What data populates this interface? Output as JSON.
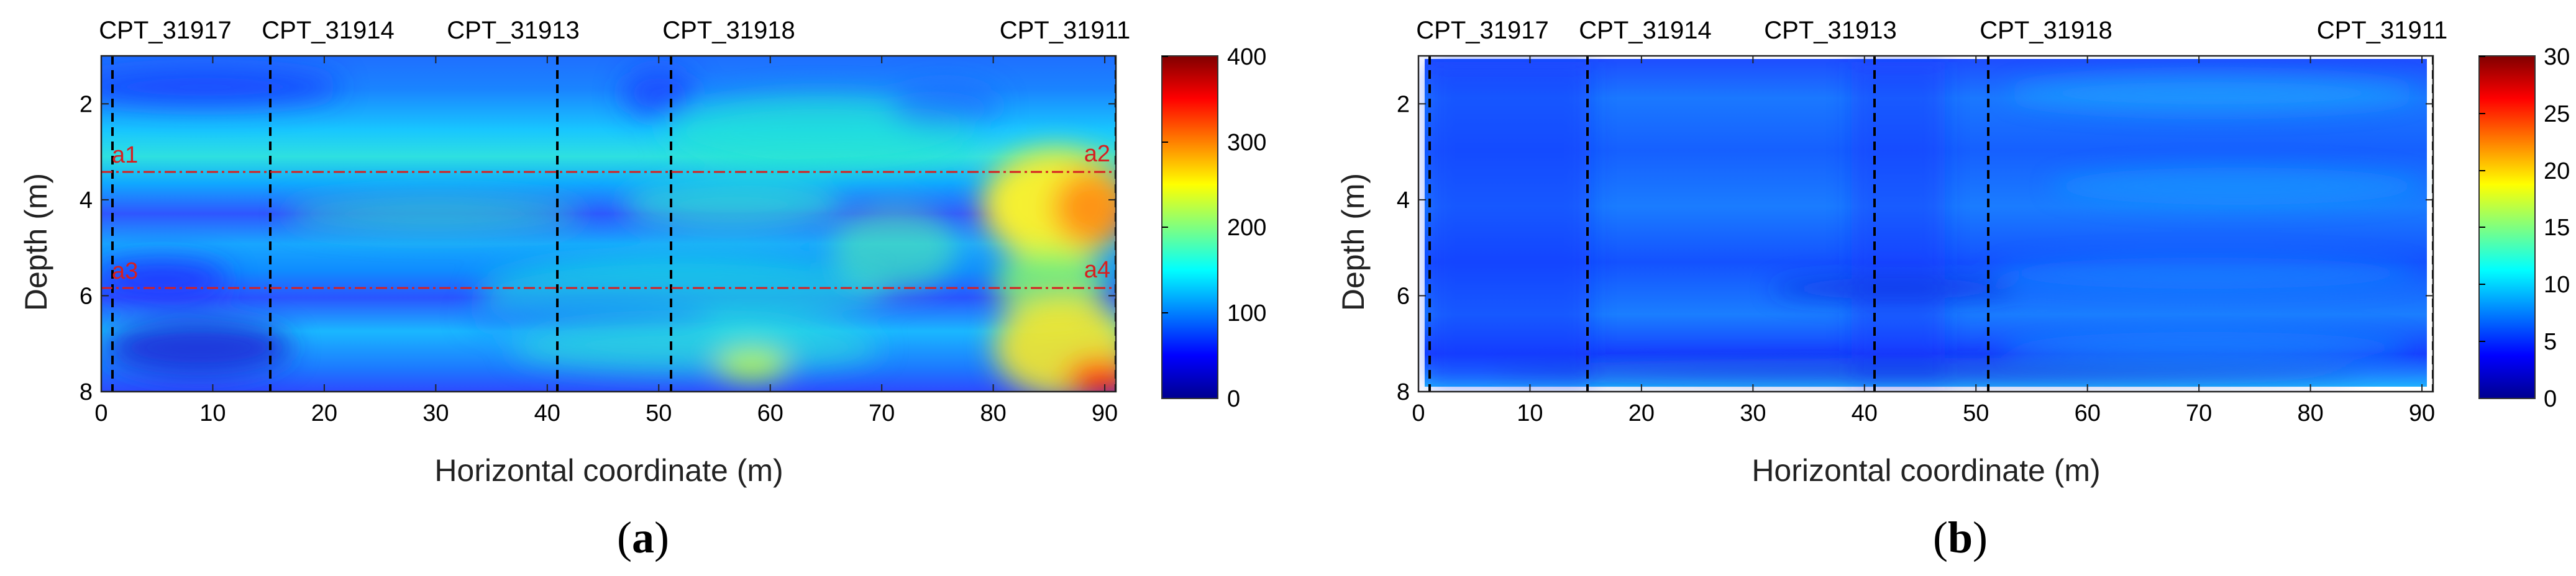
{
  "figure": {
    "panels": [
      {
        "label_prefix": "(",
        "label_letter": "a",
        "label_suffix": ")",
        "colorbar_ticks": [
          "400",
          "300",
          "200",
          "100",
          "0"
        ],
        "cpt_names": [
          "CPT_31917",
          "CPT_31914",
          "CPT_31913",
          "CPT_31918",
          "CPT_31911"
        ],
        "annotations": [
          "a1",
          "a2",
          "a3",
          "a4"
        ]
      },
      {
        "label_prefix": "(",
        "label_letter": "b",
        "label_suffix": ")",
        "colorbar_ticks": [
          "30",
          "25",
          "20",
          "15",
          "10",
          "5",
          "0"
        ],
        "cpt_names": [
          "CPT_31917",
          "CPT_31914",
          "CPT_31913",
          "CPT_31918",
          "CPT_31911"
        ]
      }
    ]
  },
  "chart_data": [
    {
      "type": "heatmap",
      "title": "",
      "xlabel": "Horizontal coordinate (m)",
      "ylabel": "Depth (m)",
      "xlim": [
        0,
        91
      ],
      "ylim": [
        1,
        8
      ],
      "y_reversed": true,
      "x_ticks": [
        "0",
        "10",
        "20",
        "30",
        "40",
        "50",
        "60",
        "70",
        "80",
        "90"
      ],
      "y_ticks": [
        "2",
        "4",
        "6",
        "8"
      ],
      "cpt_positions": [
        1,
        15.7,
        41,
        51,
        90
      ],
      "cpt_names": [
        "CPT_31917",
        "CPT_31914",
        "CPT_31913",
        "CPT_31918",
        "CPT_31911"
      ],
      "section_lines": [
        {
          "depth": 3.35,
          "left_label": "a1",
          "right_label": "a2"
        },
        {
          "depth": 5.75,
          "left_label": "a3",
          "right_label": "a4"
        }
      ],
      "colorbar": {
        "min": 0,
        "max": 400,
        "ticks": [
          0,
          100,
          200,
          300,
          400
        ],
        "colormap": "jet"
      }
    },
    {
      "type": "heatmap",
      "title": "",
      "xlabel": "Horizontal coordinate (m)",
      "ylabel": "Depth (m)",
      "xlim": [
        0,
        91
      ],
      "ylim": [
        1,
        8
      ],
      "y_reversed": true,
      "x_ticks": [
        "0",
        "10",
        "20",
        "30",
        "40",
        "50",
        "60",
        "70",
        "80",
        "90"
      ],
      "y_ticks": [
        "2",
        "4",
        "6",
        "8"
      ],
      "cpt_positions": [
        1,
        15.7,
        41,
        51,
        90
      ],
      "cpt_names": [
        "CPT_31917",
        "CPT_31914",
        "CPT_31913",
        "CPT_31918",
        "CPT_31911"
      ],
      "colorbar": {
        "min": 0,
        "max": 30,
        "ticks": [
          0,
          5,
          10,
          15,
          20,
          25,
          30
        ],
        "colormap": "jet"
      }
    }
  ]
}
